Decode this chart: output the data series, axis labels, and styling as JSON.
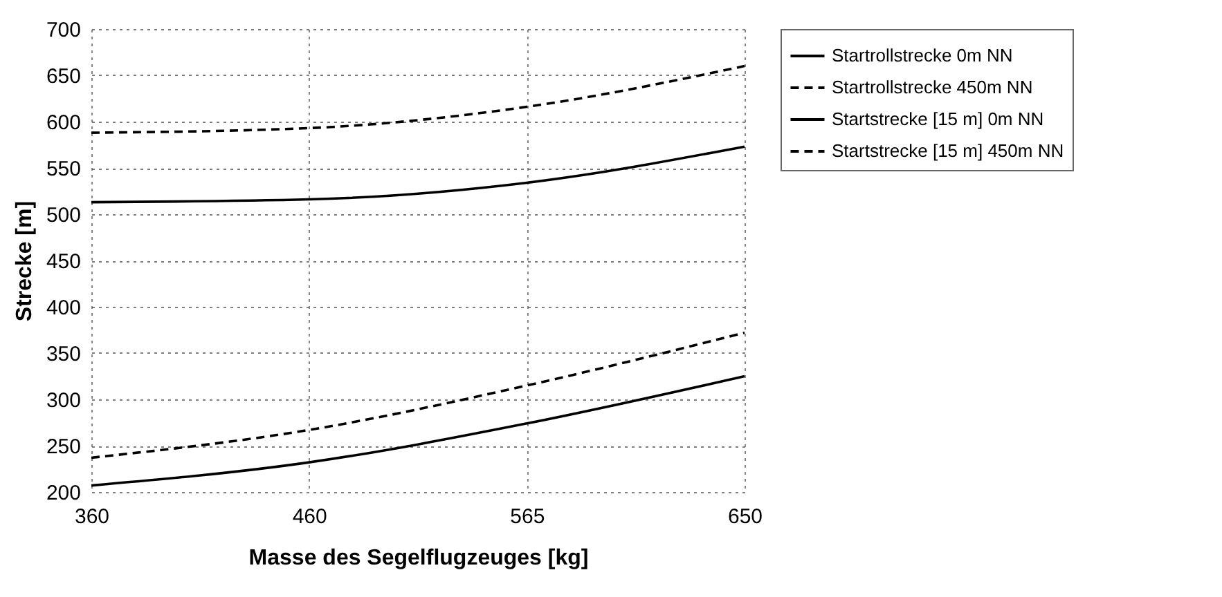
{
  "chart_data": {
    "type": "line",
    "xlabel": "Masse des Segelflugzeuges [kg]",
    "ylabel": "Strecke [m]",
    "categories": [
      "360",
      "460",
      "565",
      "650"
    ],
    "ylim": [
      200,
      700
    ],
    "yticks": [
      200,
      250,
      300,
      350,
      400,
      450,
      500,
      550,
      600,
      650,
      700
    ],
    "grid": true,
    "legend": "right",
    "marker": "none",
    "series": [
      {
        "name": "Startrollstrecke 0m NN",
        "color": "#000000",
        "line_style": "solid",
        "values": [
          207,
          232,
          274,
          325
        ]
      },
      {
        "name": "Startrollstrecke 450m NN",
        "color": "#000000",
        "line_style": "dashed",
        "values": [
          237,
          267,
          315,
          372
        ]
      },
      {
        "name": "Startstrecke [15 m] 0m NN",
        "color": "#000000",
        "line_style": "solid",
        "values": [
          513,
          516,
          534,
          573
        ]
      },
      {
        "name": "Startstrecke [15 m] 450m NN",
        "color": "#000000",
        "line_style": "dashed",
        "values": [
          588,
          593,
          616,
          660
        ]
      }
    ]
  }
}
